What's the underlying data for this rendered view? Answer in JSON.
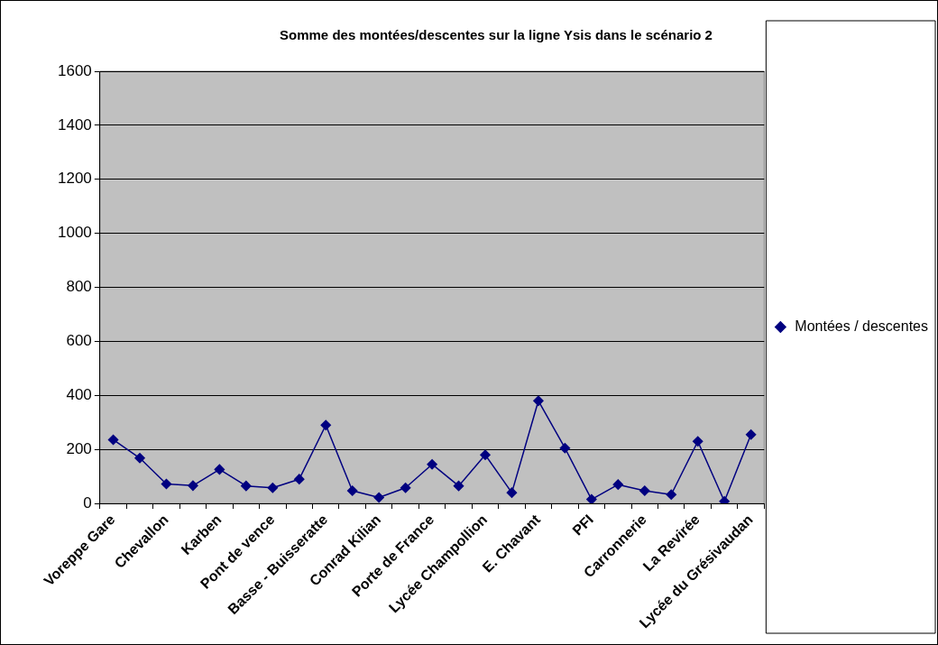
{
  "chart_data": {
    "type": "line",
    "title": "Somme des montées/descentes sur la ligne Ysis dans le scénario 2",
    "categories": [
      "Voreppe Gare",
      null,
      "Chevallon",
      null,
      "Karben",
      null,
      "Pont de vence",
      null,
      "Basse - Buisseratte",
      null,
      "Conrad Kilian",
      null,
      "Porte de France",
      null,
      "Lycée Champollion",
      null,
      "E. Chavant",
      null,
      "PFI",
      null,
      "Carronnerie",
      null,
      "La Revirée",
      null,
      "Lycée du Grésivaudan"
    ],
    "series": [
      {
        "name": "Montées / descentes",
        "color": "#000080",
        "values": [
          236,
          168,
          72,
          66,
          126,
          65,
          58,
          90,
          290,
          47,
          22,
          58,
          145,
          65,
          180,
          40,
          380,
          205,
          15,
          70,
          47,
          33,
          230,
          8,
          255
        ]
      }
    ],
    "ylim": [
      0,
      1600
    ],
    "yticks": [
      0,
      200,
      400,
      600,
      800,
      1000,
      1200,
      1400,
      1600
    ],
    "grid": "y",
    "legend": "right",
    "marker": "diamond",
    "line_style": "solid"
  }
}
